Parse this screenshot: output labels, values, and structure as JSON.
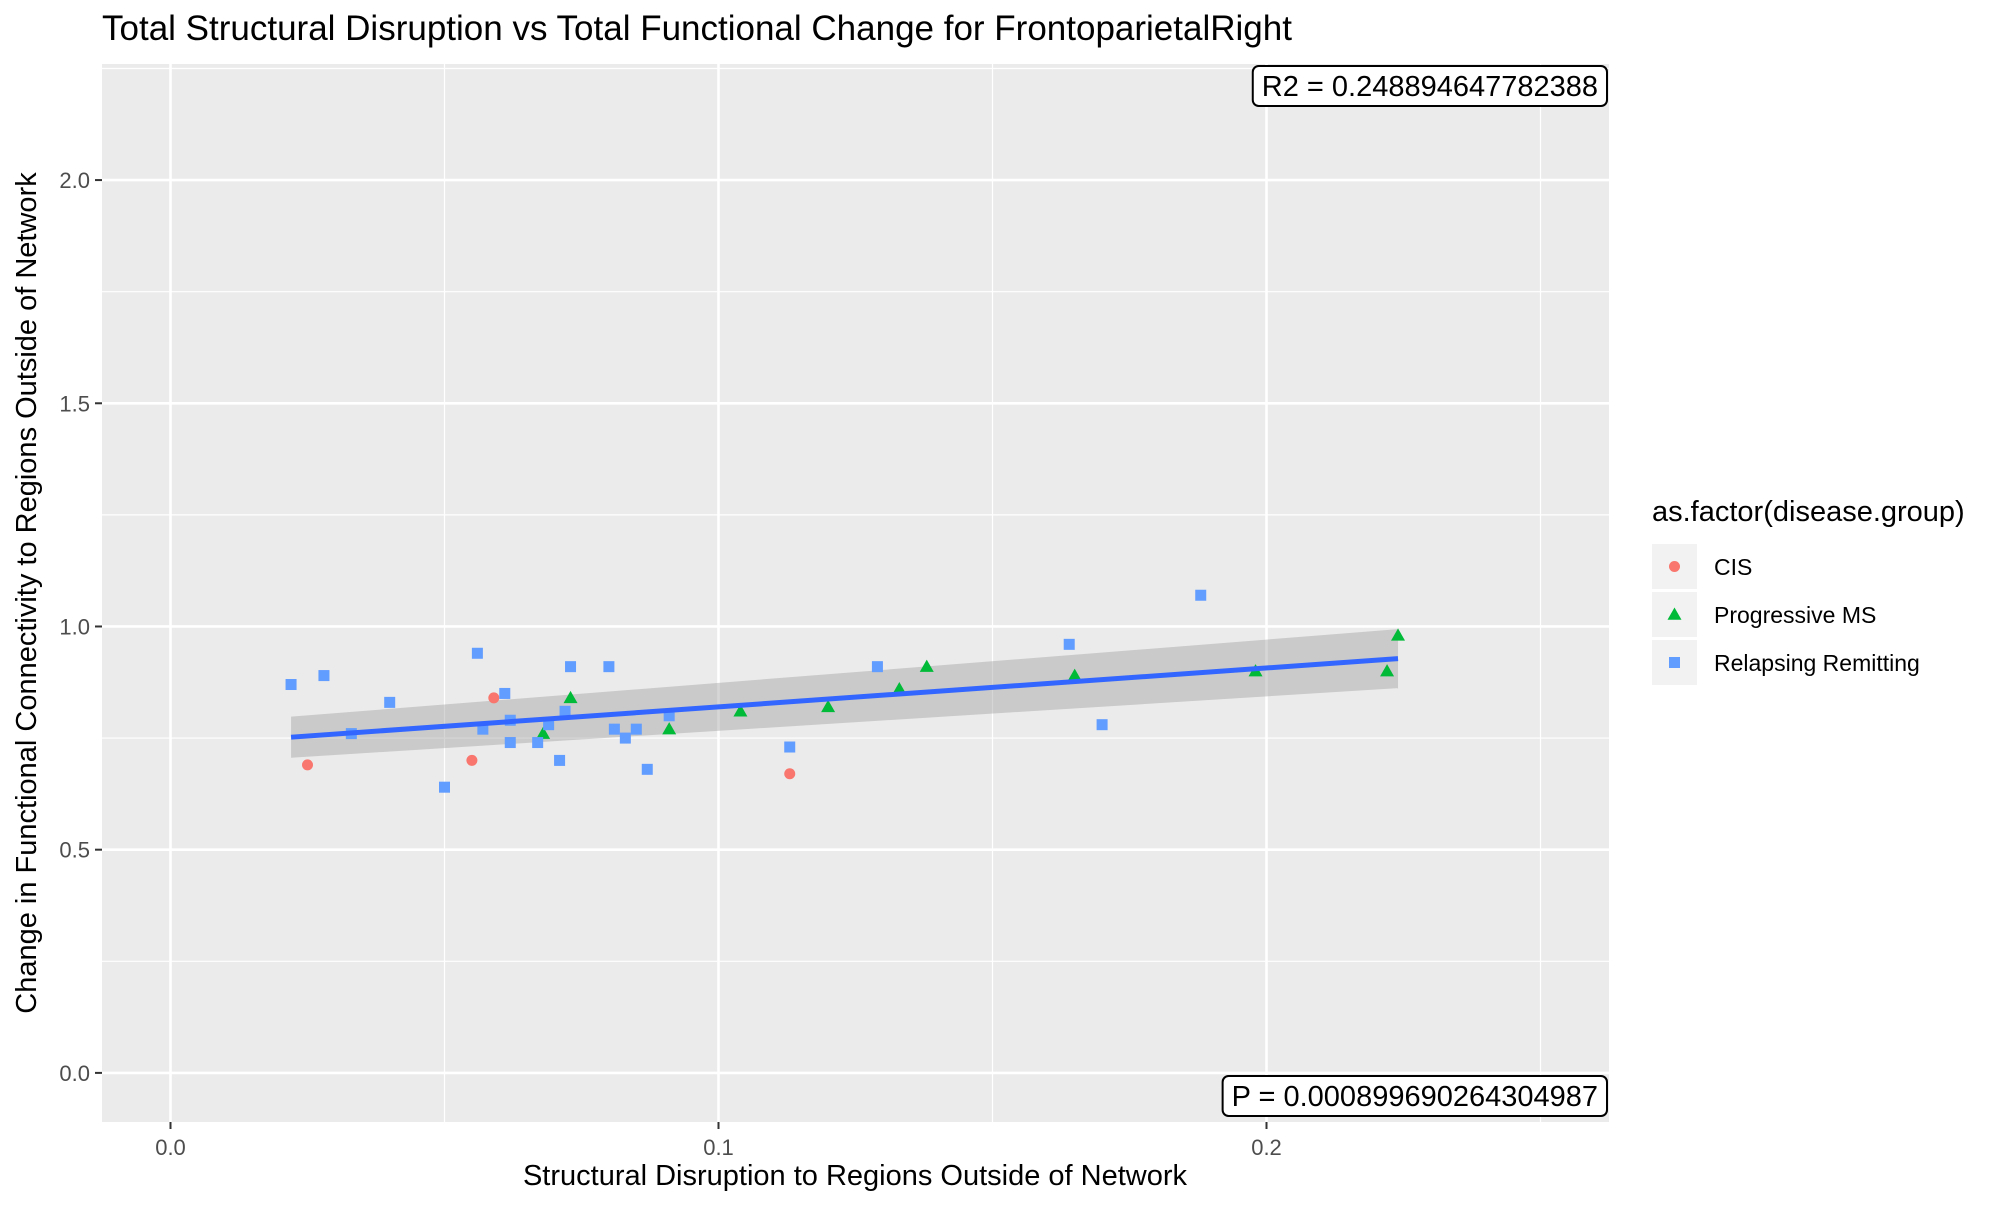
{
  "chart_data": {
    "type": "scatter",
    "title": "Total Structural Disruption vs Total Functional Change for FrontoparietalRight",
    "xlabel": "Structural Disruption to Regions Outside of Network",
    "ylabel": "Change in Functional Connectivity to Regions Outside of Network",
    "xlim": [
      -0.0125,
      0.2625
    ],
    "ylim": [
      -0.11,
      2.26
    ],
    "x_ticks": [
      0.0,
      0.1,
      0.2
    ],
    "x_tick_labels": [
      "0.0",
      "0.1",
      "0.2"
    ],
    "y_ticks": [
      0.0,
      0.5,
      1.0,
      1.5,
      2.0
    ],
    "y_tick_labels": [
      "0.0",
      "0.5",
      "1.0",
      "1.5",
      "2.0"
    ],
    "grid": true,
    "legend": {
      "title": "as.factor(disease.group)",
      "position": "right",
      "entries": [
        "CIS",
        "Progressive MS",
        "Relapsing Remitting"
      ]
    },
    "series": [
      {
        "name": "CIS",
        "color": "#F8766D",
        "marker": "circle",
        "points": [
          {
            "x": 0.025,
            "y": 0.69
          },
          {
            "x": 0.055,
            "y": 0.7
          },
          {
            "x": 0.059,
            "y": 0.84
          },
          {
            "x": 0.113,
            "y": 0.67
          }
        ]
      },
      {
        "name": "Progressive MS",
        "color": "#00BA38",
        "marker": "triangle",
        "points": [
          {
            "x": 0.068,
            "y": 0.76
          },
          {
            "x": 0.073,
            "y": 0.84
          },
          {
            "x": 0.091,
            "y": 0.77
          },
          {
            "x": 0.104,
            "y": 0.81
          },
          {
            "x": 0.12,
            "y": 0.82
          },
          {
            "x": 0.133,
            "y": 0.86
          },
          {
            "x": 0.138,
            "y": 0.91
          },
          {
            "x": 0.165,
            "y": 0.89
          },
          {
            "x": 0.198,
            "y": 0.9
          },
          {
            "x": 0.222,
            "y": 0.9
          },
          {
            "x": 0.224,
            "y": 0.98
          }
        ]
      },
      {
        "name": "Relapsing Remitting",
        "color": "#619CFF",
        "marker": "square",
        "points": [
          {
            "x": 0.022,
            "y": 0.87
          },
          {
            "x": 0.028,
            "y": 0.89
          },
          {
            "x": 0.033,
            "y": 0.76
          },
          {
            "x": 0.04,
            "y": 0.83
          },
          {
            "x": 0.05,
            "y": 0.64
          },
          {
            "x": 0.056,
            "y": 0.94
          },
          {
            "x": 0.057,
            "y": 0.77
          },
          {
            "x": 0.061,
            "y": 0.85
          },
          {
            "x": 0.062,
            "y": 0.79
          },
          {
            "x": 0.062,
            "y": 0.74
          },
          {
            "x": 0.067,
            "y": 0.74
          },
          {
            "x": 0.069,
            "y": 0.78
          },
          {
            "x": 0.071,
            "y": 0.7
          },
          {
            "x": 0.072,
            "y": 0.81
          },
          {
            "x": 0.073,
            "y": 0.91
          },
          {
            "x": 0.08,
            "y": 0.91
          },
          {
            "x": 0.081,
            "y": 0.77
          },
          {
            "x": 0.083,
            "y": 0.75
          },
          {
            "x": 0.085,
            "y": 0.77
          },
          {
            "x": 0.087,
            "y": 0.68
          },
          {
            "x": 0.091,
            "y": 0.8
          },
          {
            "x": 0.113,
            "y": 0.73
          },
          {
            "x": 0.129,
            "y": 0.91
          },
          {
            "x": 0.164,
            "y": 0.96
          },
          {
            "x": 0.17,
            "y": 0.78
          },
          {
            "x": 0.188,
            "y": 1.07
          }
        ]
      }
    ],
    "regression": {
      "color": "#3366FF",
      "band_color": "#999999",
      "x": [
        0.022,
        0.224
      ],
      "y": [
        0.752,
        0.928
      ],
      "band_lower": [
        0.706,
        0.862
      ],
      "band_upper": [
        0.798,
        0.994
      ]
    },
    "annotations": {
      "r2": "R2 =  0.248894647782388",
      "p": "P =  0.000899690264304987"
    }
  }
}
